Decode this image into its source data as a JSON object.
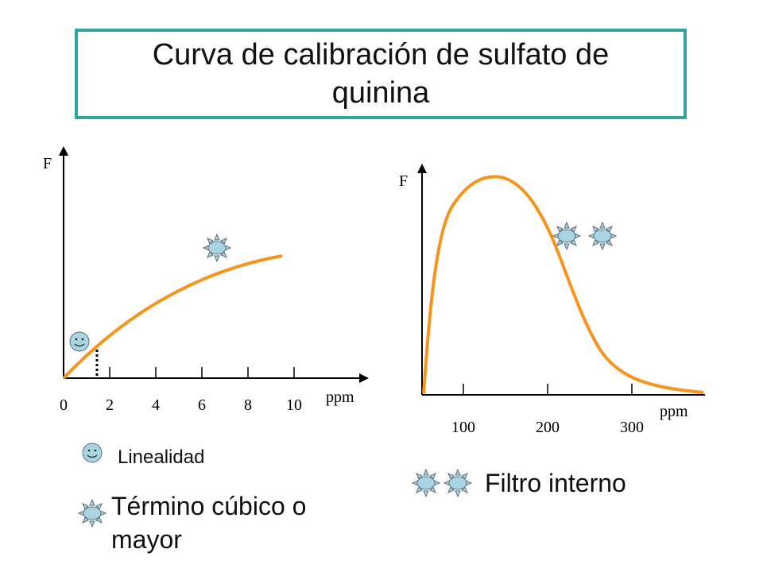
{
  "title": "Curva de calibración de sulfato de quinina",
  "colors": {
    "curve": "#f7941d",
    "axis": "#000000",
    "title_border": "#33a3a0",
    "icon_fill": "#a9d5e3",
    "sun_ray": "#7c8a98"
  },
  "left_plot": {
    "y_label": "F",
    "x_unit": "ppm",
    "x_ticks": [
      "0",
      "2",
      "4",
      "6",
      "8",
      "10"
    ],
    "curve": "rising, concave, leveling off near 10 ppm",
    "marker_icons": [
      "smiley-icon",
      "sun-icon"
    ]
  },
  "right_plot": {
    "y_label": "F",
    "x_unit": "ppm",
    "x_ticks": [
      "100",
      "200",
      "300"
    ],
    "curve": "sharp rise to peak, then decline toward baseline",
    "marker_icons": [
      "sun-icon",
      "sun-icon"
    ]
  },
  "legend": {
    "linearity": "Linealidad",
    "cubic": "Término cúbico o mayor",
    "inner_filter": "Filtro interno"
  }
}
